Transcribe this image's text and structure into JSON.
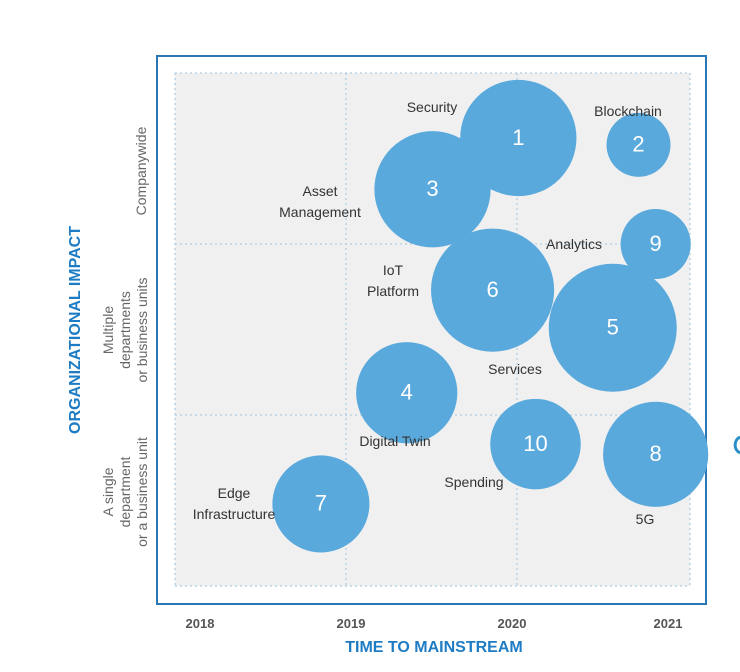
{
  "colors": {
    "bubble": "#5aa9dc",
    "frame": "#2a77b5",
    "grid": "#b9d3e6",
    "plot_bg": "#f0f0f0",
    "axis_title": "#1d7cc4",
    "edge_mark": "#2a8fc8"
  },
  "chart_data": {
    "type": "scatter",
    "subtype": "bubble",
    "x_axis": {
      "title": "TIME TO MAINSTREAM",
      "ticks": [
        "2018",
        "2019",
        "2020",
        "2021"
      ],
      "range": [
        2018,
        2021
      ]
    },
    "y_axis": {
      "title": "ORGANIZATIONAL IMPACT",
      "levels": [
        {
          "label_lines": [
            "A single",
            "department",
            "or a business unit"
          ]
        },
        {
          "label_lines": [
            "Multiple",
            "departments",
            "or business units"
          ]
        },
        {
          "label_lines": [
            "Companywide"
          ]
        }
      ],
      "range": [
        0,
        3
      ]
    },
    "points": [
      {
        "id": "1",
        "name_lines": [
          "Security"
        ],
        "x": 2020.0,
        "y": 2.62,
        "size": 3.3
      },
      {
        "id": "2",
        "name_lines": [
          "Blockchain"
        ],
        "x": 2020.7,
        "y": 2.58,
        "size": 1.0
      },
      {
        "id": "3",
        "name_lines": [
          "Asset",
          "Management"
        ],
        "x": 2019.5,
        "y": 2.32,
        "size": 3.3
      },
      {
        "id": "9",
        "name_lines": [
          "Analytics"
        ],
        "x": 2020.8,
        "y": 2.0,
        "size": 1.2
      },
      {
        "id": "6",
        "name_lines": [
          "IoT",
          "Platform"
        ],
        "x": 2019.85,
        "y": 1.73,
        "size": 3.7
      },
      {
        "id": "5",
        "name_lines": [
          "Services"
        ],
        "x": 2020.55,
        "y": 1.51,
        "size": 4.0
      },
      {
        "id": "4",
        "name_lines": [
          "Digital Twin"
        ],
        "x": 2019.35,
        "y": 1.13,
        "size": 2.5
      },
      {
        "id": "10",
        "name_lines": [
          "Spending"
        ],
        "x": 2020.1,
        "y": 0.83,
        "size": 2.0
      },
      {
        "id": "8",
        "name_lines": [
          "5G"
        ],
        "x": 2020.8,
        "y": 0.77,
        "size": 2.7
      },
      {
        "id": "7",
        "name_lines": [
          "Edge",
          "Infrastructure"
        ],
        "x": 2018.85,
        "y": 0.48,
        "size": 2.3
      }
    ]
  }
}
